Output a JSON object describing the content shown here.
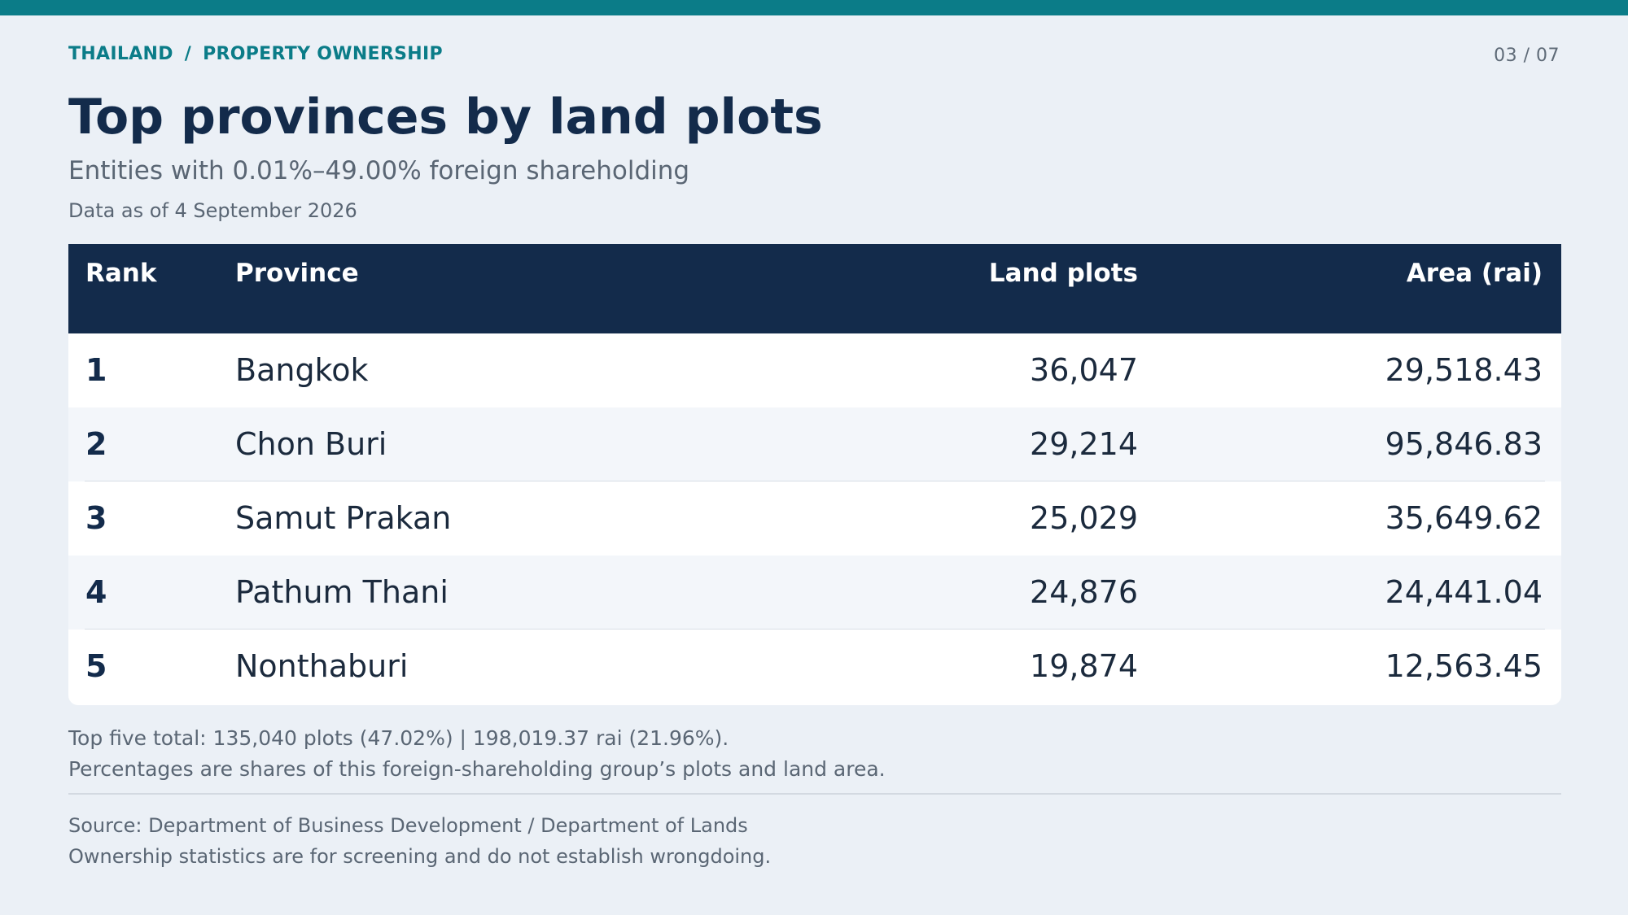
{
  "header": {
    "breadcrumb": [
      "THAILAND",
      "PROPERTY OWNERSHIP"
    ],
    "breadcrumb_separator": "/",
    "page_counter": "03 / 07"
  },
  "title": "Top provinces by land plots",
  "subtitle": "Entities with 0.01%–49.00% foreign shareholding",
  "as_of": "Data as of 4 September 2026",
  "table": {
    "columns": [
      "Rank",
      "Province",
      "Land plots",
      "Area (rai)"
    ],
    "rows": [
      {
        "rank": "1",
        "province": "Bangkok",
        "plots": "36,047",
        "area": "29,518.43"
      },
      {
        "rank": "2",
        "province": "Chon Buri",
        "plots": "29,214",
        "area": "95,846.83"
      },
      {
        "rank": "3",
        "province": "Samut Prakan",
        "plots": "25,029",
        "area": "35,649.62"
      },
      {
        "rank": "4",
        "province": "Pathum Thani",
        "plots": "24,876",
        "area": "24,441.04"
      },
      {
        "rank": "5",
        "province": "Nonthaburi",
        "plots": "19,874",
        "area": "12,563.45"
      }
    ]
  },
  "notes": [
    "Top five total: 135,040 plots (47.02%) | 198,019.37 rai (21.96%).",
    "Percentages are shares of this foreign-shareholding group’s plots and land area."
  ],
  "source": [
    "Source: Department of Business Development / Department of Lands",
    "Ownership statistics are for screening and do not establish wrongdoing."
  ],
  "colors": {
    "accent": "#0b7c88",
    "header_bg": "#132b4b",
    "page_bg": "#ebf0f6"
  }
}
